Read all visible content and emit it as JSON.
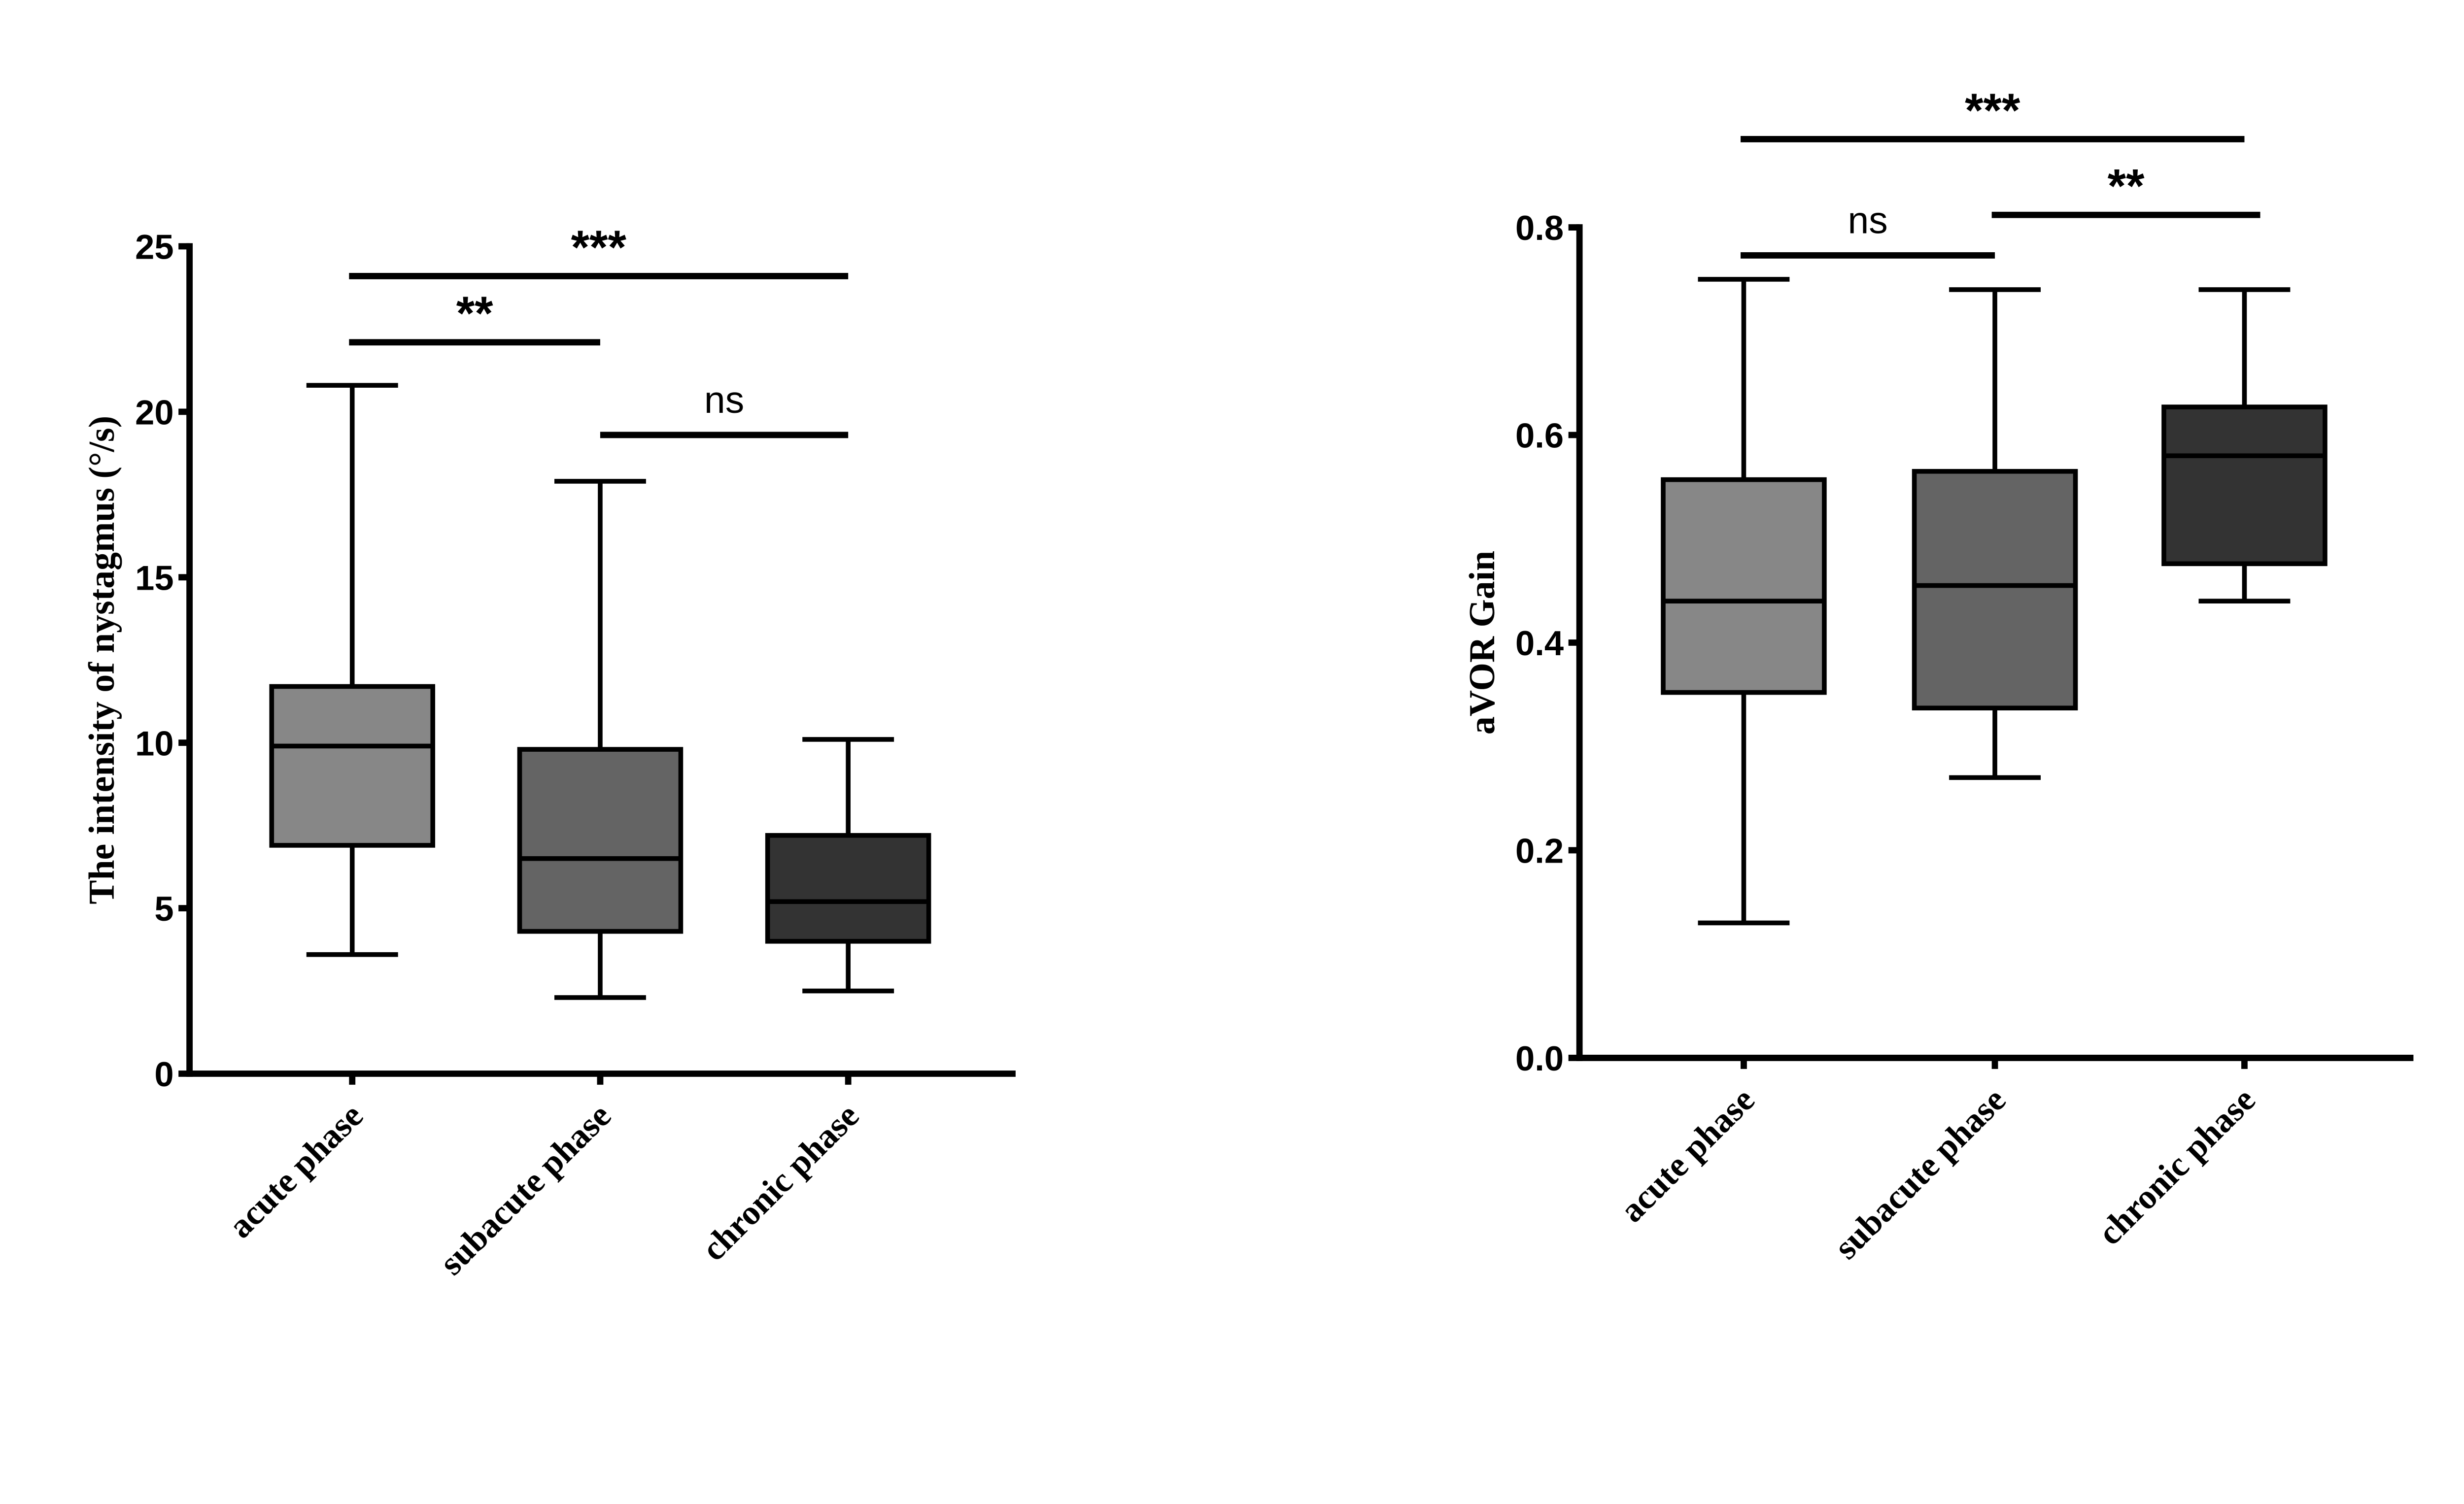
{
  "chart_data": [
    {
      "type": "box",
      "title": "",
      "xlabel": "",
      "ylabel": "The intensity of nystagmus (°/s)",
      "ylim": [
        0,
        25
      ],
      "yticks": [
        0,
        5,
        10,
        15,
        20,
        25
      ],
      "ytick_labels": [
        "0",
        "5",
        "10",
        "15",
        "20",
        "25"
      ],
      "categories": [
        "acute phase",
        "subacute phase",
        "chronic phase"
      ],
      "colors": [
        "#878787",
        "#646464",
        "#333333"
      ],
      "boxes": [
        {
          "min": 3.6,
          "q1": 6.9,
          "median": 9.9,
          "q3": 11.7,
          "max": 20.8
        },
        {
          "min": 2.3,
          "q1": 4.3,
          "median": 6.5,
          "q3": 9.8,
          "max": 17.9
        },
        {
          "min": 2.5,
          "q1": 4.0,
          "median": 5.2,
          "q3": 7.2,
          "max": 10.1
        }
      ],
      "significance": [
        {
          "from": 0,
          "to": 2,
          "y": 24.1,
          "label": "***"
        },
        {
          "from": 0,
          "to": 1,
          "y": 22.1,
          "label": "**"
        },
        {
          "from": 1,
          "to": 2,
          "y": 19.3,
          "label": "ns"
        }
      ],
      "grid": false
    },
    {
      "type": "box",
      "title": "",
      "xlabel": "",
      "ylabel": "aVOR Gain",
      "ylim": [
        0,
        0.8
      ],
      "yticks": [
        0,
        0.2,
        0.4,
        0.6,
        0.8
      ],
      "ytick_labels": [
        "0.0",
        "0.2",
        "0.4",
        "0.6",
        "0.8"
      ],
      "categories": [
        "acute phase",
        "subacute phase",
        "chronic phase"
      ],
      "colors": [
        "#878787",
        "#646464",
        "#333333"
      ],
      "boxes": [
        {
          "min": 0.13,
          "q1": 0.352,
          "median": 0.44,
          "q3": 0.557,
          "max": 0.75
        },
        {
          "min": 0.27,
          "q1": 0.337,
          "median": 0.455,
          "q3": 0.565,
          "max": 0.74
        },
        {
          "min": 0.44,
          "q1": 0.476,
          "median": 0.58,
          "q3": 0.627,
          "max": 0.74
        }
      ],
      "significance": [
        {
          "from": 0,
          "to": 2,
          "y": 0.885,
          "label": "***"
        },
        {
          "from": 1,
          "to": 2,
          "y": 0.812,
          "label": "**"
        },
        {
          "from": 0,
          "to": 1,
          "y": 0.773,
          "label": "ns"
        }
      ],
      "grid": false
    }
  ]
}
